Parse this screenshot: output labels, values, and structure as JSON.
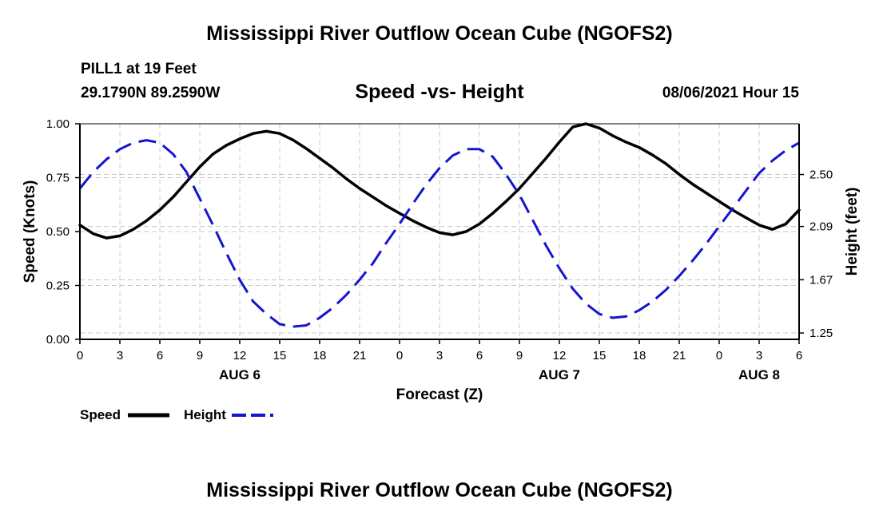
{
  "top_title": "Mississippi River Outflow Ocean Cube (NGOFS2)",
  "bottom_title": "Mississippi River Outflow Ocean Cube (NGOFS2)",
  "station": "PILL1 at 19 Feet",
  "coords": "29.1790N  89.2590W",
  "subtitle": "Speed -vs- Height",
  "datetime": "08/06/2021 Hour 15",
  "colors": {
    "speed": "#000000",
    "height": "#1515d0",
    "grid": "#c8c8c8"
  },
  "chart_data": {
    "type": "line",
    "title": "Speed -vs- Height",
    "xlabel": "Forecast (Z)",
    "ylabel": "Speed (Knots)",
    "y2label": "Height (feet)",
    "xlim": [
      0,
      54
    ],
    "ylim": [
      0,
      1
    ],
    "y2lim": [
      1.2,
      2.9
    ],
    "x_tick_values": [
      0,
      3,
      6,
      9,
      12,
      15,
      18,
      21,
      24,
      27,
      30,
      33,
      36,
      39,
      42,
      45,
      48,
      51,
      54
    ],
    "x_tick_labels": [
      "0",
      "3",
      "6",
      "9",
      "12",
      "15",
      "18",
      "21",
      "0",
      "3",
      "6",
      "9",
      "12",
      "15",
      "18",
      "21",
      "0",
      "3",
      "6"
    ],
    "day_labels": [
      {
        "x": 12,
        "label": "AUG 6"
      },
      {
        "x": 36,
        "label": "AUG 7"
      },
      {
        "x": 51,
        "label": "AUG 8"
      }
    ],
    "y_ticks": [
      0,
      0.25,
      0.5,
      0.75,
      1
    ],
    "y_tick_labels": [
      "0.00",
      "0.25",
      "0.50",
      "0.75",
      "1.00"
    ],
    "y2_ticks": [
      1.25,
      1.67,
      2.09,
      2.5
    ],
    "y2_tick_labels": [
      "1.25",
      "1.67",
      "2.09",
      "2.50"
    ],
    "grid": true,
    "legend_position": "bottom-left",
    "series": [
      {
        "name": "Speed",
        "axis": "left",
        "style": "solid",
        "x": [
          0,
          1,
          2,
          3,
          4,
          5,
          6,
          7,
          8,
          9,
          10,
          11,
          12,
          13,
          14,
          15,
          16,
          17,
          18,
          19,
          20,
          21,
          22,
          23,
          24,
          25,
          26,
          27,
          28,
          29,
          30,
          31,
          32,
          33,
          34,
          35,
          36,
          37,
          38,
          39,
          40,
          41,
          42,
          43,
          44,
          45,
          46,
          47,
          48,
          49,
          50,
          51,
          52,
          53,
          54
        ],
        "values": [
          0.53,
          0.49,
          0.47,
          0.48,
          0.51,
          0.55,
          0.6,
          0.66,
          0.73,
          0.8,
          0.86,
          0.9,
          0.93,
          0.955,
          0.965,
          0.955,
          0.925,
          0.885,
          0.84,
          0.795,
          0.745,
          0.7,
          0.66,
          0.62,
          0.585,
          0.55,
          0.52,
          0.495,
          0.485,
          0.5,
          0.535,
          0.585,
          0.64,
          0.7,
          0.77,
          0.84,
          0.915,
          0.985,
          1.0,
          0.98,
          0.945,
          0.915,
          0.89,
          0.855,
          0.815,
          0.765,
          0.72,
          0.68,
          0.64,
          0.6,
          0.565,
          0.53,
          0.51,
          0.535,
          0.6
        ]
      },
      {
        "name": "Height",
        "axis": "right",
        "style": "dashed",
        "x": [
          0,
          1,
          2,
          3,
          4,
          5,
          6,
          7,
          8,
          9,
          10,
          11,
          12,
          13,
          14,
          15,
          16,
          17,
          18,
          19,
          20,
          21,
          22,
          23,
          24,
          25,
          26,
          27,
          28,
          29,
          30,
          31,
          32,
          33,
          34,
          35,
          36,
          37,
          38,
          39,
          40,
          41,
          42,
          43,
          44,
          45,
          46,
          47,
          48,
          49,
          50,
          51,
          52,
          53,
          54
        ],
        "values": [
          2.39,
          2.52,
          2.62,
          2.7,
          2.75,
          2.77,
          2.75,
          2.66,
          2.52,
          2.31,
          2.1,
          1.88,
          1.67,
          1.5,
          1.4,
          1.32,
          1.3,
          1.31,
          1.37,
          1.45,
          1.55,
          1.67,
          1.8,
          1.96,
          2.11,
          2.27,
          2.42,
          2.55,
          2.65,
          2.7,
          2.7,
          2.64,
          2.5,
          2.34,
          2.14,
          1.94,
          1.76,
          1.6,
          1.48,
          1.4,
          1.37,
          1.38,
          1.43,
          1.5,
          1.59,
          1.7,
          1.82,
          1.95,
          2.09,
          2.23,
          2.37,
          2.51,
          2.61,
          2.69,
          2.75
        ]
      }
    ]
  }
}
